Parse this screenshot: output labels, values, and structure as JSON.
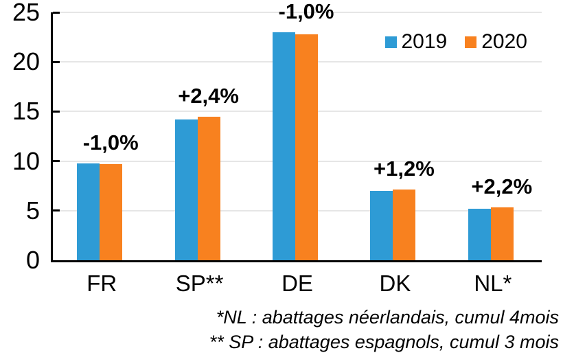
{
  "chart_data": {
    "type": "bar",
    "categories": [
      "FR",
      "SP**",
      "DE",
      "DK",
      "NL*"
    ],
    "series": [
      {
        "name": "2019",
        "color": "#2E9BD5",
        "values": [
          9.8,
          14.2,
          23.0,
          7.0,
          5.2
        ]
      },
      {
        "name": "2020",
        "color": "#F8811F",
        "values": [
          9.7,
          14.5,
          22.8,
          7.1,
          5.3
        ]
      }
    ],
    "bar_labels": [
      "-1,0%",
      "+2,4%",
      "-1,0%",
      "+1,2%",
      "+2,2%"
    ],
    "title": "",
    "xlabel": "",
    "ylabel": "",
    "ylim": [
      0,
      25
    ],
    "yticks": [
      0,
      5,
      10,
      15,
      20,
      25
    ],
    "grid": true,
    "gridline_color": "#E6E6E6",
    "axis_color": "#000000",
    "legend_position": "top-right"
  },
  "legend": {
    "items": [
      {
        "label": "2019",
        "color": "#2E9BD5"
      },
      {
        "label": "2020",
        "color": "#F8811F"
      }
    ]
  },
  "footnotes": [
    "*NL : abattages néerlandais, cumul 4mois",
    "** SP : abattages espagnols, cumul 3 mois"
  ]
}
